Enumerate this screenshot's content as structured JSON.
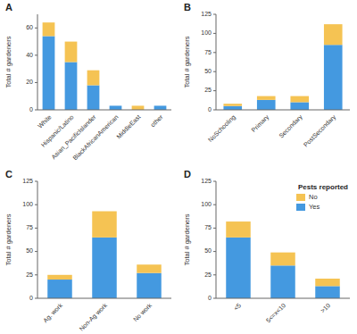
{
  "chart_data": [
    {
      "type": "bar",
      "stacked": true,
      "title": "A",
      "y_label": "Total # gardeners",
      "categories": [
        "White",
        "Hispanic/Latino",
        "Asian_PacificIslander",
        "BlackAfricanAmerican",
        "MiddleEast",
        "other"
      ],
      "series": [
        {
          "name": "Yes",
          "color": "#4499E0",
          "values": [
            54,
            35,
            18,
            3,
            0,
            3
          ]
        },
        {
          "name": "No",
          "color": "#F5C353",
          "values": [
            10,
            15,
            11,
            0,
            3,
            0
          ]
        }
      ],
      "ylim": [
        0,
        70
      ],
      "yticks": [
        0,
        20,
        40,
        60
      ],
      "grid": false,
      "legend": false
    },
    {
      "type": "bar",
      "stacked": true,
      "title": "B",
      "y_label": "Total # gardeners",
      "categories": [
        "NoSchooling",
        "Primary",
        "Secondary",
        "PostSecondary"
      ],
      "series": [
        {
          "name": "Yes",
          "color": "#4499E0",
          "values": [
            5,
            13,
            10,
            85
          ]
        },
        {
          "name": "No",
          "color": "#F5C353",
          "values": [
            3,
            5,
            8,
            27
          ]
        }
      ],
      "ylim": [
        0,
        125
      ],
      "yticks": [
        0,
        25,
        50,
        75,
        100,
        125
      ],
      "grid": false,
      "legend": false
    },
    {
      "type": "bar",
      "stacked": true,
      "title": "C",
      "y_label": "Total # gardeners",
      "categories": [
        "Ag. work",
        "Non-Ag work",
        "No work"
      ],
      "series": [
        {
          "name": "Yes",
          "color": "#4499E0",
          "values": [
            20,
            65,
            27
          ]
        },
        {
          "name": "No",
          "color": "#F5C353",
          "values": [
            5,
            28,
            9
          ]
        }
      ],
      "ylim": [
        0,
        125
      ],
      "yticks": [
        0,
        25,
        50,
        75,
        100,
        125
      ],
      "grid": false,
      "legend": false
    },
    {
      "type": "bar",
      "stacked": true,
      "title": "D",
      "y_label": "Total # gardeners",
      "categories": [
        "<5",
        "5<=x<10",
        ">10"
      ],
      "series": [
        {
          "name": "Yes",
          "color": "#4499E0",
          "values": [
            65,
            35,
            13
          ]
        },
        {
          "name": "No",
          "color": "#F5C353",
          "values": [
            17,
            14,
            8
          ]
        }
      ],
      "ylim": [
        0,
        125
      ],
      "yticks": [
        0,
        25,
        50,
        75,
        100,
        125
      ],
      "grid": false,
      "legend": "upper right",
      "legend_title": "Pests reported"
    }
  ]
}
